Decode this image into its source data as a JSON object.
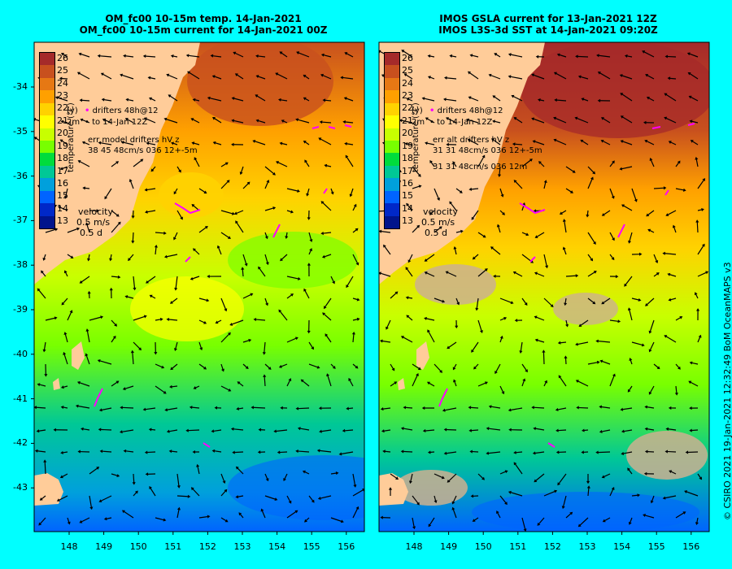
{
  "left_panel": {
    "title_line1": "OM_fc00 10-15m temp. 14-Jan-2021",
    "title_line2": "OM_fc00 10-15m current for 14-Jan-2021 00Z",
    "legend_drifters": "drifters 48h@12",
    "legend_to": "to 14-Jan 12Z",
    "legend_err": "err model drifters hV z",
    "legend_err_values": "38 45 48cm/s 036 12+-5m",
    "legend_extra": "",
    "legend_y_marker": "(y)",
    "legend_z_marker": "2m"
  },
  "right_panel": {
    "title_line1": "IMOS GSLA current for 13-Jan-2021 12Z",
    "title_line2": "IMOS L3S-3d SST at 14-Jan-2021 09:20Z",
    "legend_drifters": "drifters 48h@12",
    "legend_to": "to 14-Jan 12Z",
    "legend_err": "err alt drifters hV z",
    "legend_err_values": "31 31 48cm/s 036 12+-5m",
    "legend_extra": "31 31 48cm/s 036 12m",
    "legend_y_marker": "(y)",
    "legend_z_marker": "2m"
  },
  "colorbar": {
    "title": "temperature (°C)",
    "labels": [
      "26",
      "25",
      "24",
      "23",
      "22",
      "21",
      "20",
      "19",
      "18",
      "17",
      "16",
      "15",
      "14",
      "13"
    ],
    "colors": [
      "#a52a2a",
      "#c8501e",
      "#e67814",
      "#ffa000",
      "#ffd200",
      "#ffff00",
      "#c8ff00",
      "#78ff00",
      "#00dc3c",
      "#00c896",
      "#00a0dc",
      "#0064ff",
      "#0028c8",
      "#00148c"
    ]
  },
  "velocity": {
    "label": "velocity",
    "speed": "0.5 m/s",
    "days": "0.5 d"
  },
  "axes": {
    "lat_labels": [
      "-34",
      "-35",
      "-36",
      "-37",
      "-38",
      "-39",
      "-40",
      "-41",
      "-42",
      "-43"
    ],
    "lon_labels": [
      "148",
      "149",
      "150",
      "151",
      "152",
      "153",
      "154",
      "155",
      "156"
    ]
  },
  "credit": "© CSIRO 2021   19-Jan-2021 12:32:49 BoM OceanMAPS v3",
  "colors": {
    "frame": "#00ffff",
    "land": "#ffcc99",
    "nodata": "#cdb08f",
    "drifter": "#ff00ff",
    "arrow": "#000000"
  }
}
